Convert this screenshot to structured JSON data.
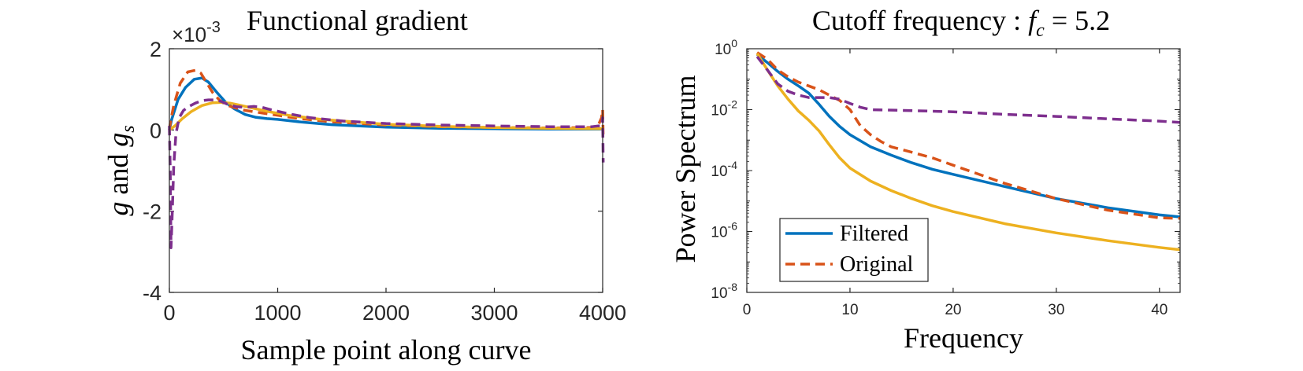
{
  "chart_data": [
    {
      "type": "line",
      "title": "Functional gradient",
      "xlabel": "Sample point along curve",
      "ylabel_main": "g",
      "ylabel_and": " and ",
      "ylabel_g": "g",
      "ylabel_sub": "s",
      "exponent_mult": "×10",
      "exponent_power": "-3",
      "xlim": [
        0,
        4000
      ],
      "ylim": [
        -4,
        2
      ],
      "xticks": [
        0,
        1000,
        2000,
        3000,
        4000
      ],
      "yticks": [
        -4,
        -2,
        0,
        2
      ],
      "grid": false,
      "series": [
        {
          "color": "#0072BD",
          "dash": "solid",
          "x": [
            0,
            20,
            80,
            150,
            230,
            300,
            360,
            440,
            520,
            600,
            700,
            800,
            900,
            1000,
            1200,
            1500,
            2000,
            2500,
            3000,
            3500,
            3950,
            4000
          ],
          "y": [
            0.0,
            0.25,
            0.75,
            1.05,
            1.25,
            1.28,
            1.18,
            0.92,
            0.68,
            0.52,
            0.38,
            0.31,
            0.28,
            0.26,
            0.2,
            0.13,
            0.07,
            0.04,
            0.03,
            0.02,
            0.02,
            0.02
          ]
        },
        {
          "color": "#D95319",
          "dash": "dashed",
          "x": [
            0,
            10,
            40,
            100,
            170,
            240,
            290,
            340,
            400,
            460,
            520,
            600,
            700,
            850,
            1000,
            1200,
            1500,
            2000,
            2500,
            3000,
            3500,
            3950,
            3990,
            4000,
            4005
          ],
          "y": [
            0.0,
            0.2,
            0.6,
            1.15,
            1.43,
            1.47,
            1.4,
            1.18,
            0.92,
            0.74,
            0.62,
            0.55,
            0.48,
            0.42,
            0.36,
            0.28,
            0.2,
            0.12,
            0.08,
            0.06,
            0.05,
            0.06,
            0.3,
            0.5,
            -0.2
          ]
        },
        {
          "color": "#EDB120",
          "dash": "solid",
          "x": [
            0,
            50,
            120,
            200,
            300,
            400,
            480,
            560,
            650,
            750,
            900,
            1100,
            1400,
            2000,
            2500,
            3000,
            3500,
            4000
          ],
          "y": [
            0.0,
            0.1,
            0.28,
            0.45,
            0.6,
            0.67,
            0.68,
            0.66,
            0.61,
            0.55,
            0.46,
            0.36,
            0.26,
            0.14,
            0.09,
            0.06,
            0.04,
            0.03
          ]
        },
        {
          "color": "#7E2F8E",
          "dash": "dashed",
          "x": [
            0,
            8,
            15,
            25,
            40,
            60,
            90,
            130,
            180,
            240,
            300,
            360,
            420,
            480,
            540,
            620,
            700,
            780,
            850,
            950,
            1100,
            1300,
            1600,
            2000,
            2500,
            3000,
            3500,
            3900,
            3960,
            3990,
            4000,
            4005
          ],
          "y": [
            0.1,
            -1.0,
            -2.9,
            -2.2,
            -0.9,
            -0.1,
            0.3,
            0.48,
            0.58,
            0.66,
            0.72,
            0.74,
            0.74,
            0.7,
            0.63,
            0.57,
            0.56,
            0.58,
            0.56,
            0.49,
            0.4,
            0.3,
            0.22,
            0.16,
            0.12,
            0.1,
            0.08,
            0.08,
            0.1,
            0.1,
            0.3,
            -0.8
          ]
        }
      ]
    },
    {
      "type": "line",
      "title_prefix": "Cutoff frequency : ",
      "title_f": "f",
      "title_sub": "c",
      "title_suffix": " = 5.2",
      "xlabel": "Frequency",
      "ylabel": "Power Spectrum",
      "xlim": [
        0,
        42
      ],
      "ylim": [
        1e-08,
        1
      ],
      "yscale": "log",
      "xticks": [
        0,
        10,
        20,
        30,
        40
      ],
      "ytick_exponents": [
        0,
        -2,
        -4,
        -6,
        -8
      ],
      "ytick_base": "10",
      "grid": false,
      "legend_position": "bottom-left",
      "legend": [
        {
          "label": "Filtered",
          "color": "#0072BD",
          "dash": "solid"
        },
        {
          "label": "Original",
          "color": "#D95319",
          "dash": "dashed"
        }
      ],
      "series": [
        {
          "name": "Filtered",
          "color": "#0072BD",
          "dash": "solid",
          "x": [
            1,
            2,
            3,
            4,
            5,
            6,
            7,
            8,
            9,
            10,
            12,
            14,
            16,
            18,
            20,
            25,
            30,
            35,
            40,
            42
          ],
          "y": [
            0.65,
            0.35,
            0.18,
            0.1,
            0.06,
            0.035,
            0.015,
            0.006,
            0.0028,
            0.0015,
            0.0006,
            0.00032,
            0.00018,
            0.00011,
            7.5e-05,
            3e-05,
            1.2e-05,
            6e-06,
            3.5e-06,
            3e-06
          ]
        },
        {
          "name": "Original",
          "color": "#D95319",
          "dash": "dashed",
          "x": [
            1,
            2,
            3,
            4,
            5,
            6,
            7,
            8,
            9,
            10,
            11,
            12,
            13,
            14,
            16,
            18,
            20,
            25,
            30,
            35,
            40,
            42
          ],
          "y": [
            0.75,
            0.45,
            0.2,
            0.12,
            0.08,
            0.06,
            0.045,
            0.03,
            0.02,
            0.01,
            0.003,
            0.0015,
            0.0009,
            0.0006,
            0.0004,
            0.00026,
            0.00015,
            3.8e-05,
            1.2e-05,
            5e-06,
            2.8e-06,
            2.7e-06
          ]
        },
        {
          "color": "#EDB120",
          "dash": "solid",
          "x": [
            1,
            2,
            3,
            4,
            5,
            6,
            7,
            8,
            9,
            10,
            12,
            14,
            16,
            18,
            20,
            25,
            30,
            35,
            40,
            42
          ],
          "y": [
            0.7,
            0.2,
            0.06,
            0.022,
            0.009,
            0.0045,
            0.002,
            0.0007,
            0.00026,
            0.00012,
            4.5e-05,
            2.2e-05,
            1.2e-05,
            7e-06,
            4.5e-06,
            1.8e-06,
            9e-07,
            5e-07,
            3e-07,
            2.5e-07
          ]
        },
        {
          "color": "#7E2F8E",
          "dash": "dashed",
          "x": [
            1,
            2,
            3,
            4,
            5,
            6,
            7,
            8,
            9,
            10,
            11,
            12,
            15,
            20,
            25,
            30,
            35,
            40,
            42
          ],
          "y": [
            0.55,
            0.2,
            0.07,
            0.04,
            0.03,
            0.025,
            0.025,
            0.025,
            0.022,
            0.016,
            0.012,
            0.01,
            0.0095,
            0.0085,
            0.007,
            0.006,
            0.005,
            0.0042,
            0.0038
          ]
        }
      ]
    }
  ]
}
